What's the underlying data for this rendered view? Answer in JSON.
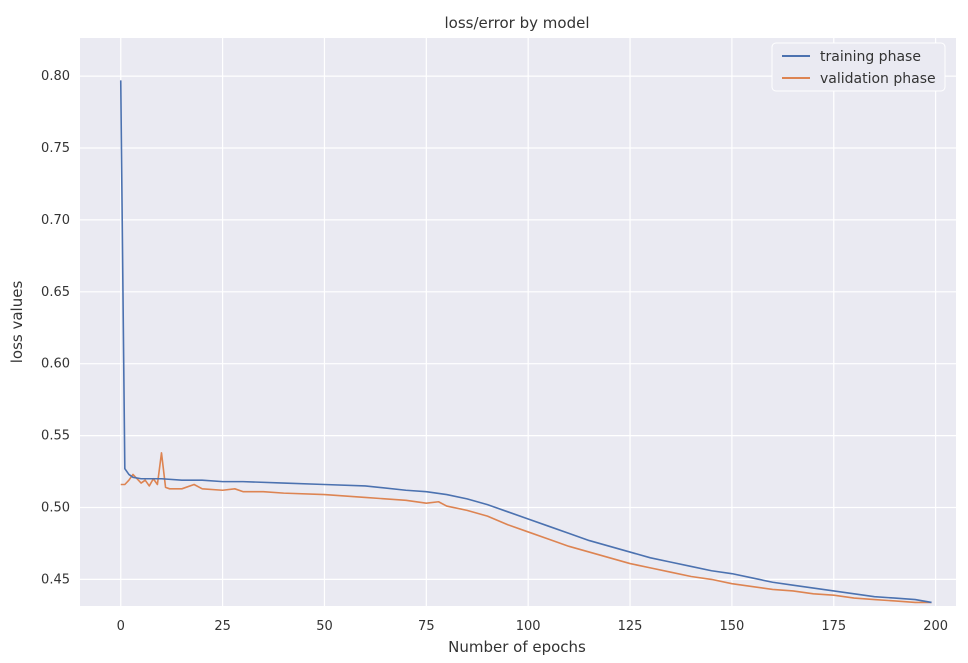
{
  "chart_data": {
    "type": "line",
    "title": "loss/error by model",
    "xlabel": "Number of epochs",
    "ylabel": "loss values",
    "xlim": [
      -10,
      205
    ],
    "ylim": [
      0.4315,
      0.8265
    ],
    "xticks": [
      0,
      25,
      50,
      75,
      100,
      125,
      150,
      175,
      200
    ],
    "yticks": [
      0.45,
      0.5,
      0.55,
      0.6,
      0.65,
      0.7,
      0.75,
      0.8
    ],
    "ytick_labels": [
      "0.45",
      "0.50",
      "0.55",
      "0.60",
      "0.65",
      "0.70",
      "0.75",
      "0.80"
    ],
    "grid": true,
    "legend_position": "top-right",
    "background_color": "#eaeaf2",
    "series": [
      {
        "name": "training phase",
        "color": "#4c72b0",
        "x": [
          0,
          1,
          2,
          3,
          5,
          10,
          15,
          20,
          25,
          30,
          40,
          50,
          60,
          70,
          75,
          80,
          85,
          90,
          95,
          100,
          105,
          110,
          115,
          120,
          125,
          130,
          135,
          140,
          145,
          150,
          155,
          160,
          165,
          170,
          175,
          180,
          185,
          190,
          195,
          199
        ],
        "values": [
          0.797,
          0.527,
          0.523,
          0.521,
          0.52,
          0.52,
          0.519,
          0.519,
          0.518,
          0.518,
          0.517,
          0.516,
          0.515,
          0.512,
          0.511,
          0.509,
          0.506,
          0.502,
          0.497,
          0.492,
          0.487,
          0.482,
          0.477,
          0.473,
          0.469,
          0.465,
          0.462,
          0.459,
          0.456,
          0.454,
          0.451,
          0.448,
          0.446,
          0.444,
          0.442,
          0.44,
          0.438,
          0.437,
          0.436,
          0.434
        ]
      },
      {
        "name": "validation phase",
        "color": "#dd8452",
        "x": [
          0,
          1,
          2,
          3,
          4,
          5,
          6,
          7,
          8,
          9,
          10,
          11,
          12,
          15,
          18,
          20,
          25,
          28,
          30,
          35,
          40,
          50,
          60,
          70,
          75,
          78,
          80,
          85,
          90,
          95,
          100,
          105,
          110,
          115,
          120,
          125,
          130,
          135,
          140,
          145,
          150,
          155,
          160,
          165,
          170,
          175,
          180,
          185,
          190,
          195,
          199
        ],
        "values": [
          0.516,
          0.516,
          0.519,
          0.523,
          0.52,
          0.517,
          0.519,
          0.515,
          0.52,
          0.516,
          0.538,
          0.514,
          0.513,
          0.513,
          0.516,
          0.513,
          0.512,
          0.513,
          0.511,
          0.511,
          0.51,
          0.509,
          0.507,
          0.505,
          0.503,
          0.504,
          0.501,
          0.498,
          0.494,
          0.488,
          0.483,
          0.478,
          0.473,
          0.469,
          0.465,
          0.461,
          0.458,
          0.455,
          0.452,
          0.45,
          0.447,
          0.445,
          0.443,
          0.442,
          0.44,
          0.439,
          0.437,
          0.436,
          0.435,
          0.434,
          0.434
        ]
      }
    ]
  }
}
